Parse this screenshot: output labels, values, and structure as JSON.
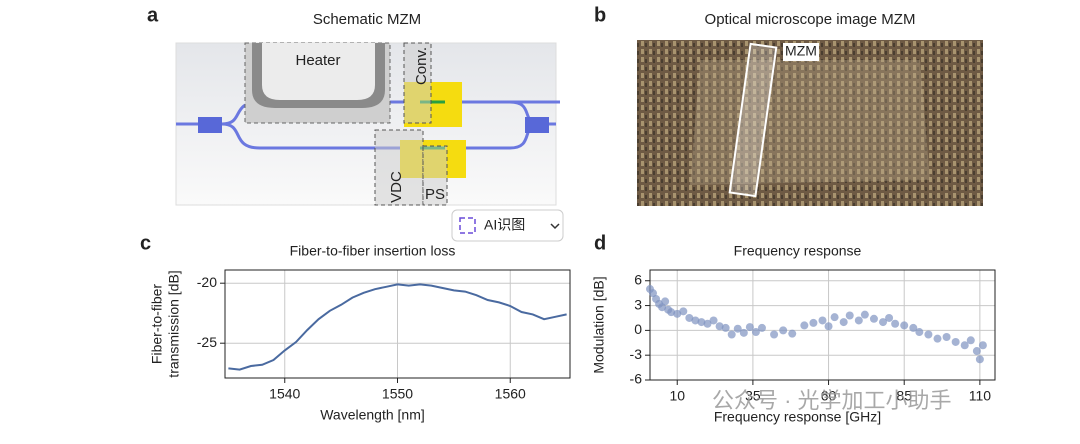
{
  "panels": {
    "a": {
      "label": "a",
      "title": "Schematic MZM",
      "heater": "Heater",
      "conv": "Conv.",
      "vdc": "VDC",
      "ps": "PS"
    },
    "b": {
      "label": "b",
      "title": "Optical microscope image MZM",
      "annotation": "MZM"
    },
    "c": {
      "label": "c"
    },
    "d": {
      "label": "d"
    }
  },
  "button": "AI识图",
  "watermark": "公众号 · 光学加工小助手",
  "chart_data": [
    {
      "type": "line",
      "title": "Fiber-to-fiber insertion loss",
      "xlabel": "Wavelength [nm]",
      "ylabel": [
        "Fiber-to-fiber",
        "transmission [dB]"
      ],
      "color": "#4a6aa0",
      "x": [
        1535,
        1536,
        1537,
        1538,
        1539,
        1540,
        1541,
        1542,
        1543,
        1544,
        1545,
        1546,
        1547,
        1548,
        1549,
        1550,
        1551,
        1552,
        1553,
        1554,
        1555,
        1556,
        1557,
        1558,
        1559,
        1560,
        1561,
        1562,
        1563,
        1564,
        1565
      ],
      "series": [
        {
          "name": "transmission",
          "color": "#4a6aa0",
          "values": [
            -27.1,
            -27.2,
            -26.9,
            -26.8,
            -26.4,
            -25.6,
            -24.9,
            -23.9,
            -23.0,
            -22.3,
            -21.8,
            -21.2,
            -20.8,
            -20.5,
            -20.3,
            -20.1,
            -20.2,
            -20.1,
            -20.2,
            -20.4,
            -20.6,
            -20.7,
            -21.0,
            -21.4,
            -21.6,
            -21.9,
            -22.4,
            -22.6,
            -23.0,
            -22.8,
            -22.6
          ]
        }
      ],
      "xlim": [
        1534.7,
        1565.3
      ],
      "ylim": [
        -27.9,
        -18.9
      ],
      "xticks": [
        1540,
        1550,
        1560
      ],
      "yticks": [
        -20,
        -25
      ],
      "grid": true
    },
    {
      "type": "scatter",
      "title": "Frequency response",
      "xlabel": "Frequency response [GHz]",
      "ylabel": [
        "Modulation [dB]"
      ],
      "color": "#7f93c0",
      "x": [
        1,
        2,
        3,
        4,
        5,
        6,
        7,
        8,
        10,
        12,
        14,
        16,
        18,
        20,
        22,
        24,
        26,
        28,
        30,
        32,
        34,
        36,
        38,
        42,
        45,
        48,
        52,
        55,
        58,
        60,
        62,
        65,
        67,
        70,
        72,
        75,
        78,
        80,
        82,
        85,
        88,
        90,
        93,
        96,
        99,
        102,
        105,
        107,
        109,
        110,
        111
      ],
      "series": [
        {
          "name": "modulation",
          "color": "#7f93c0",
          "values": [
            5,
            4.5,
            3.8,
            3.2,
            2.8,
            3.5,
            2.5,
            2.2,
            2,
            2.3,
            1.5,
            1.2,
            1,
            0.8,
            1.2,
            0.5,
            0.3,
            -0.5,
            0.2,
            -0.3,
            0.4,
            -0.2,
            0.3,
            -0.5,
            0,
            -0.4,
            0.6,
            0.9,
            1.2,
            0.5,
            1.6,
            1,
            1.8,
            1.2,
            1.9,
            1.4,
            1,
            1.5,
            0.8,
            0.6,
            0.3,
            -0.2,
            -0.5,
            -1,
            -0.8,
            -1.4,
            -1.8,
            -1.2,
            -2.5,
            -3.5,
            -1.8
          ]
        }
      ],
      "xlim": [
        1,
        115
      ],
      "ylim": [
        -6,
        7.3
      ],
      "xticks": [
        10,
        35,
        60,
        85,
        110
      ],
      "yticks": [
        -6,
        -3,
        0,
        3,
        6
      ],
      "grid": true
    }
  ]
}
